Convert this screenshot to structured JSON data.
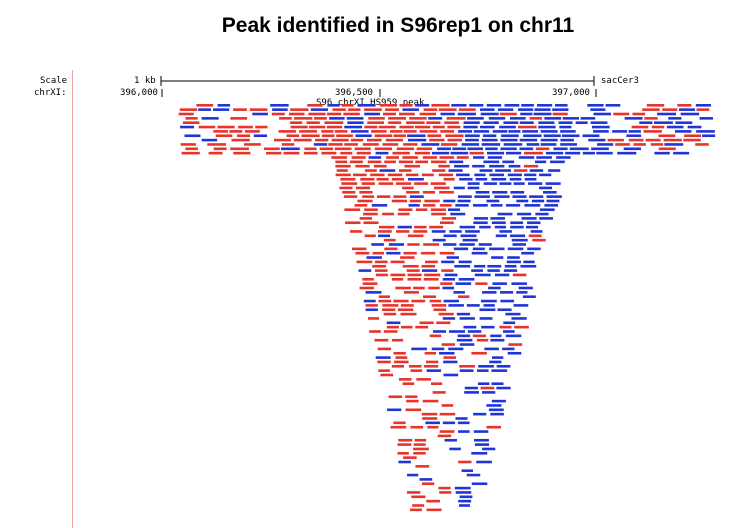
{
  "title": "Peak identified in S96rep1 on chr11",
  "browser": {
    "scale_label": "Scale",
    "chrom_label": "chrXI:",
    "scale_bar_label": "1 kb",
    "assembly": "sacCer3",
    "positions": [
      "396,000",
      "396,500",
      "397,000"
    ],
    "peak_label": "S96 chrXI HS959 peak"
  },
  "colors": {
    "forward_read": "#e8332b",
    "reverse_read": "#1f35d6",
    "axis": "#000000",
    "sidebar_line": "#f2a0a0"
  }
}
